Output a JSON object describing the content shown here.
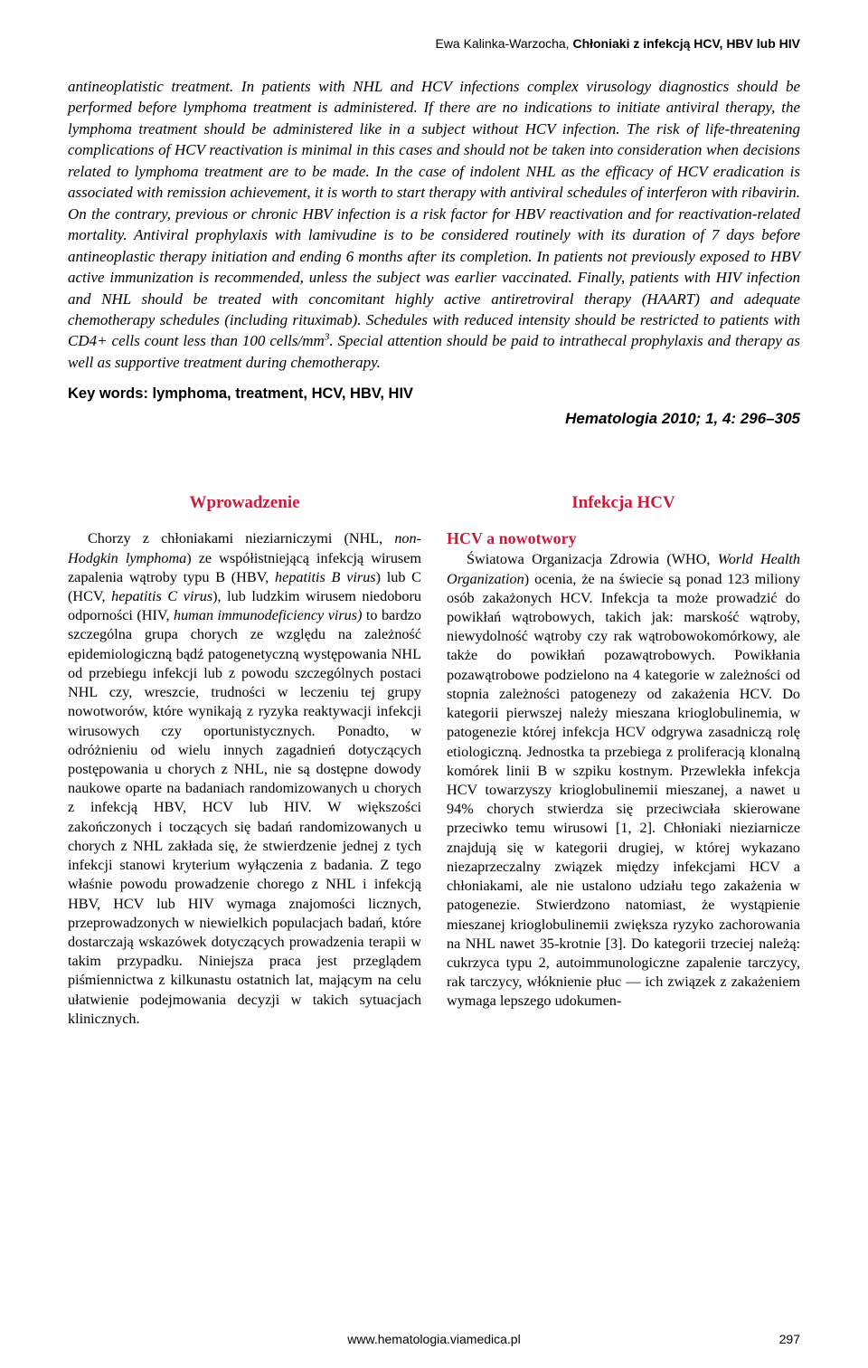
{
  "colors": {
    "heading": "#c41e3a",
    "text": "#000000",
    "background": "#ffffff"
  },
  "typography": {
    "body_fontsize": 16.2,
    "heading_fontsize": 19,
    "subheading_fontsize": 18,
    "abstract_fontsize": 17,
    "keywords_fontsize": 16.5,
    "header_fontsize": 14,
    "footer_fontsize": 14,
    "line_height": 1.31
  },
  "header": {
    "author": "Ewa Kalinka-Warzocha,",
    "title": "Chłoniaki z infekcją HCV, HBV lub HIV"
  },
  "abstract": {
    "text_part1": "antineoplatistic treatment. In patients with NHL and HCV infections complex virusology diagnostics should be performed before lymphoma treatment is administered. If there are no indications to initiate antiviral therapy, the lymphoma treatment should be administered like in a subject without HCV infection. The risk of life-threatening complications of HCV reactivation is minimal in this cases and should not be taken into consideration when decisions related to lymphoma treatment are to be made. In the case of indolent NHL as the efficacy of HCV eradication is associated with remission achievement, it is worth to start therapy with antiviral schedules of interferon with ribavirin. On the contrary, previous or chronic HBV infection is a risk factor for HBV reactivation and for reactivation-related mortality. Antiviral prophylaxis with lamivudine is to be considered routinely with its duration of 7 days before antineoplastic therapy initiation and ending 6 months after its completion. In patients not previously exposed to HBV active immunization is recommended, unless the subject was earlier vaccinated. Finally, patients with HIV infection and NHL should be treated with concomitant highly active antiretroviral therapy (HAART) and adequate chemotherapy schedules (including rituximab). Schedules with reduced intensity should be restricted to patients with CD4+ cells count less than 100 cells/mm",
    "sup": "3",
    "text_part2": ". Special attention should be paid to intrathecal prophylaxis and therapy as well as supportive treatment during chemotherapy."
  },
  "keywords": {
    "label": "Key words:",
    "values": "lymphoma, treatment, HCV, HBV, HIV"
  },
  "citation": "Hematologia 2010; 1, 4: 296–305",
  "left_column": {
    "heading": "Wprowadzenie",
    "body_pre": "Chorzy z chłoniakami nieziarniczymi (NHL, ",
    "ital1": "non-Hodgkin lymphoma",
    "body_mid1": ") ze współistniejącą infekcją wirusem zapalenia wątroby typu B (HBV, ",
    "ital2": "hepatitis B virus",
    "body_mid2": ") lub C (HCV, ",
    "ital3": "hepatitis C virus",
    "body_mid3": "), lub ludzkim wirusem niedoboru odporności (HIV, ",
    "ital4": "human immunodeficiency virus)",
    "body_post": " to bardzo szczególna grupa chorych ze względu na zależność epidemiologiczną bądź patogenetyczną występowania NHL od przebiegu infekcji lub z powodu szczególnych postaci NHL czy, wreszcie, trudności w leczeniu tej grupy nowotworów, które wynikają z ryzyka reaktywacji infekcji wirusowych czy oportunistycznych. Ponadto, w odróżnieniu od wielu innych zagadnień dotyczących postępowania u chorych z NHL, nie są dostępne dowody naukowe oparte na badaniach randomizowanych u chorych z infekcją HBV, HCV lub HIV. W większości zakończonych i toczących się badań randomizowanych u chorych z NHL zakłada się, że stwierdzenie jednej z tych infekcji stanowi kryterium wyłączenia z badania. Z tego właśnie powodu prowadzenie chorego z NHL i infekcją HBV, HCV lub HIV wymaga znajomości licznych, przeprowadzonych w niewielkich populacjach badań, które dostarczają wskazówek dotyczących prowadzenia terapii w takim przypadku. Niniejsza praca jest przeglądem piśmiennictwa z kilkunastu ostatnich lat, mającym na celu ułatwienie podejmowania decyzji w takich sytuacjach klinicznych."
  },
  "right_column": {
    "heading": "Infekcja HCV",
    "subheading": "HCV a nowotwory",
    "body_pre": "Światowa Organizacja Zdrowia (WHO, ",
    "ital1": "World Health Organization",
    "body_post": ") ocenia, że na świecie są ponad 123 miliony osób zakażonych HCV. Infekcja ta może prowadzić do powikłań wątrobowych, takich jak: marskość wątroby, niewydolność wątroby czy rak wątrobowokomórkowy, ale także do powikłań pozawątrobowych. Powikłania pozawątrobowe podzielono na 4 kategorie w zależności od stopnia zależności patogenezy od zakażenia HCV. Do kategorii pierwszej należy mieszana krioglobulinemia, w patogenezie której infekcja HCV odgrywa zasadniczą rolę etiologiczną. Jednostka ta przebiega z proliferacją klonalną komórek linii B w szpiku kostnym. Przewlekła infekcja HCV towarzyszy krioglobulinemii mieszanej, a nawet u 94% chorych stwierdza się przeciwciała skierowane przeciwko temu wirusowi [1, 2]. Chłoniaki nieziarnicze znajdują się w kategorii drugiej, w której wykazano niezaprzeczalny związek między infekcjami HCV a chłoniakami, ale nie ustalono udziału tego zakażenia w patogenezie. Stwierdzono natomiast, że wystąpienie mieszanej krioglobulinemii zwiększa ryzyko zachorowania na NHL nawet 35-krotnie [3]. Do kategorii trzeciej należą: cukrzyca typu 2, autoimmunologiczne zapalenie tarczycy, rak tarczycy, włóknienie płuc — ich związek z zakażeniem wymaga lepszego udokumen-"
  },
  "footer": {
    "url": "www.hematologia.viamedica.pl",
    "page": "297"
  }
}
